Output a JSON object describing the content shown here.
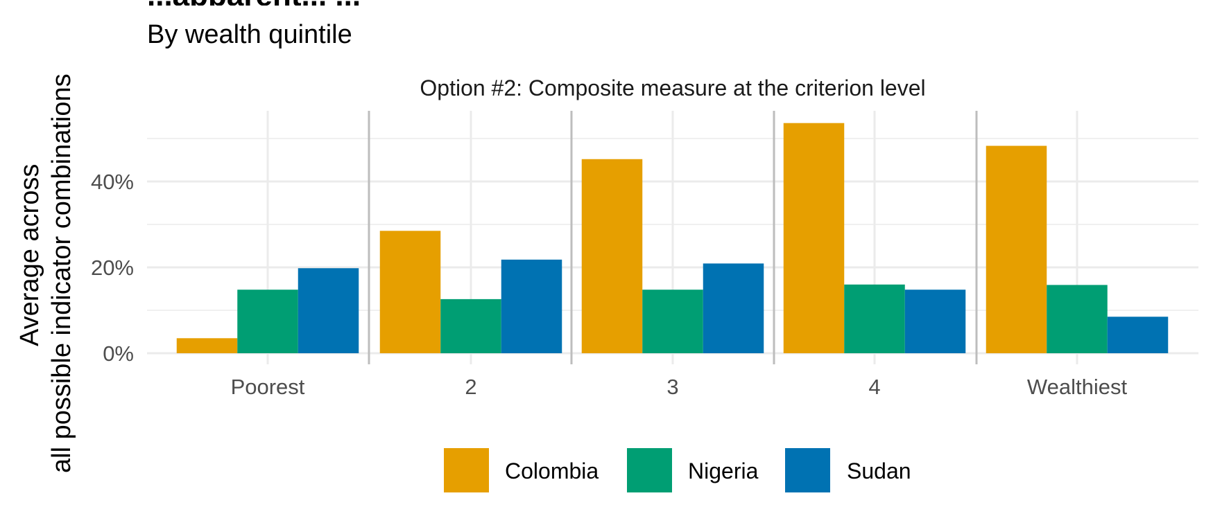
{
  "chart_data": {
    "type": "bar",
    "title": "...apparent... ...",
    "subtitle": "By wealth quintile",
    "facet_label": "Option #2: Composite measure at the criterion level",
    "ylabel_line1": "Average across",
    "ylabel_line2": "all possible indicator combinations",
    "xlabel": "",
    "categories": [
      "Poorest",
      "2",
      "3",
      "4",
      "Wealthiest"
    ],
    "y_ticks": [
      0,
      20,
      40
    ],
    "y_tick_labels": [
      "0%",
      "20%",
      "40%"
    ],
    "ylim": [
      0,
      56
    ],
    "grid": true,
    "legend_position": "bottom",
    "series": [
      {
        "name": "Colombia",
        "color": "#E69F00",
        "values": [
          3.5,
          28.5,
          45.2,
          53.6,
          48.3
        ]
      },
      {
        "name": "Nigeria",
        "color": "#009E73",
        "values": [
          14.8,
          12.6,
          14.8,
          16.0,
          15.9
        ]
      },
      {
        "name": "Sudan",
        "color": "#0072B2",
        "values": [
          19.8,
          21.8,
          20.9,
          14.8,
          8.5
        ]
      }
    ]
  }
}
